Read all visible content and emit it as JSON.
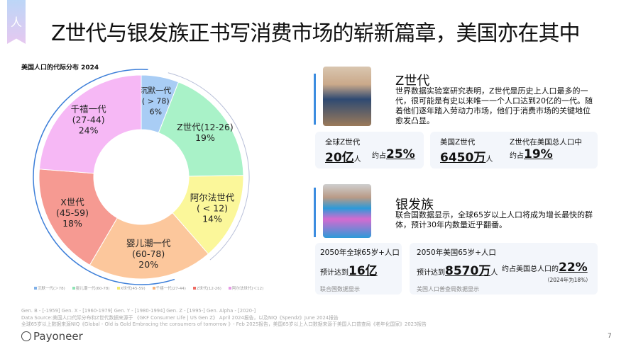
{
  "ribbon_glyph": "人",
  "title": "Z世代与银发族正书写消费市场的崭新篇章，美国亦在其中",
  "chart_data": {
    "type": "pie",
    "title": "美国人口的代际分布 2024",
    "donut": true,
    "slices": [
      {
        "name": "沉默一代",
        "range": "( > 78)",
        "value": 6,
        "label": "6%",
        "color": "#a9cdf5"
      },
      {
        "name": "Z世代(12-26)",
        "range": "",
        "value": 19,
        "label": "19%",
        "color": "#a9f2c8"
      },
      {
        "name": "阿尔法世代",
        "range": "( < 12)",
        "value": 14,
        "label": "14%",
        "color": "#fbf79a"
      },
      {
        "name": "婴儿潮一代",
        "range": "(60-78)",
        "value": 20,
        "label": "20%",
        "color": "#fcc79c"
      },
      {
        "name": "X世代",
        "range": "(45-59)",
        "value": 18,
        "label": "18%",
        "color": "#f69a92"
      },
      {
        "name": "千禧一代",
        "range": "(27-44)",
        "value": 24,
        "label": "24%",
        "color": "#f6b8f5"
      }
    ],
    "legend": [
      {
        "label": "沉默一代(＞78)",
        "color": "#7fb0e8"
      },
      {
        "label": "婴儿潮一代(60-78)",
        "color": "#8fe3b5"
      },
      {
        "label": "X世代(45-59)",
        "color": "#f3ea6e"
      },
      {
        "label": "千禧一代(27-44)",
        "color": "#f8b27a"
      },
      {
        "label": "Z世代(12-26)",
        "color": "#ee6b62"
      },
      {
        "label": "阿尔法世代(＜12)",
        "color": "#e79ae6"
      }
    ],
    "legend_position": "bottom"
  },
  "genz": {
    "heading": "Z世代",
    "desc": "世界数据实验室研究表明，Z世代是历史上人口最多的一代，很可能是有史以来唯一一个人口达到20亿的一代。随着他们逐年踏入劳动力市场，他们于消费市场的关键地位愈发凸显。",
    "card1": {
      "label": "全球Z世代",
      "value": "20亿",
      "unit": "人",
      "share_prefix": "约占",
      "share": "25%"
    },
    "card2": {
      "label": "美国Z世代",
      "value": "6450万",
      "unit": "人",
      "label2": "Z世代在美国总人口中",
      "share_prefix": "约占",
      "share": "19%"
    }
  },
  "silver": {
    "heading": "银发族",
    "desc": "联合国数据显示，全球65岁以上人口将成为增长最快的群体，预计30年内数量近乎翻番。",
    "card1": {
      "label": "2050年全球65岁+人口",
      "prefix": "预计达到",
      "value": "16亿",
      "source": "联合国数据显示"
    },
    "card2": {
      "label": "2050年美国65岁+人口",
      "prefix": "预计达到",
      "value": "8570万",
      "unit": "人",
      "share_prefix": "约占美国总人口的",
      "share": "22%",
      "note": "（2024年为18%）",
      "source": "美国人口普查局数据显示"
    }
  },
  "footnotes": [
    "Gen. B - [-1959]  Gen. X - [1960-1979] Gen. Y - [1980-1994] Gen. Z - [1995-] Gen. Alpha - [2020-]",
    "Data Source:美国人口代际分布和Z世代数据来源于 《GKF Consumer Life | US Gen Z》 April 2024报告，以及NIQ《Spendz》June 2024报告",
    "全球65岁以上数据来源NIQ《Global - Old is Gold Embracing the consumers of tomorrow 》- Feb 2025报告，美国65岁以上人口数据来源于美国人口普查局《老年化国家》2023报告"
  ],
  "logo": "Payoneer",
  "page_number": "7"
}
